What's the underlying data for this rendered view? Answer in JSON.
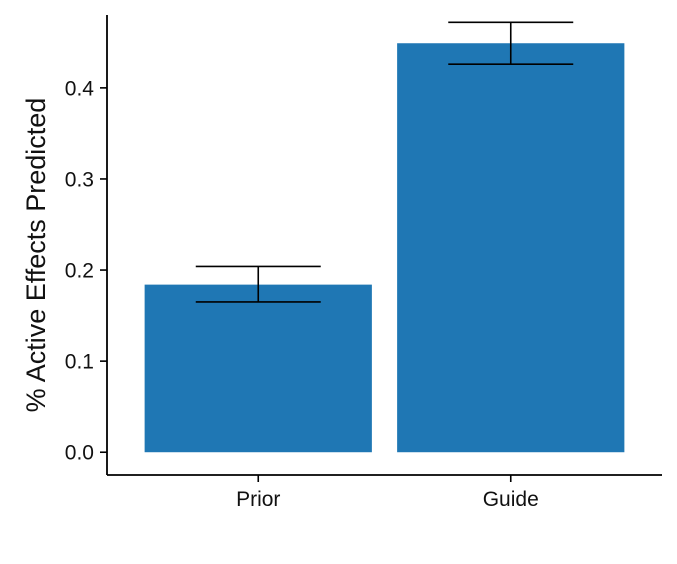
{
  "chart_data": {
    "type": "bar",
    "title": "",
    "xlabel": "",
    "ylabel": "% Active Effects Predicted",
    "categories": [
      "Prior",
      "Guide"
    ],
    "values": [
      0.184,
      0.449
    ],
    "error_low": [
      0.165,
      0.426
    ],
    "error_high": [
      0.204,
      0.472
    ],
    "ylim": [
      -0.025,
      0.48
    ],
    "yticks": [
      0.0,
      0.1,
      0.2,
      0.3,
      0.4
    ],
    "ytick_labels": [
      "0.0",
      "0.1",
      "0.2",
      "0.3",
      "0.4"
    ],
    "grid": false,
    "legend": "none",
    "bar_color": "#1f77b4",
    "axis_color": "#000000"
  }
}
